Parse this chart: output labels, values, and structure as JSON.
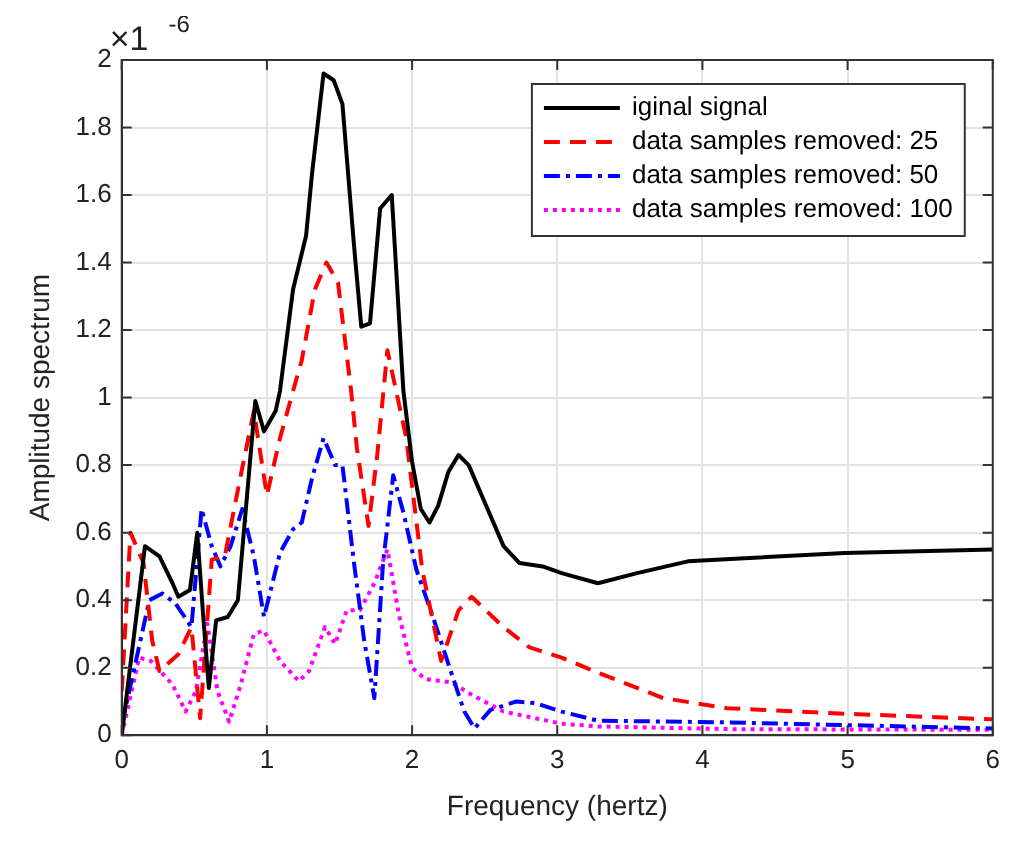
{
  "chart_data": {
    "type": "line",
    "xlabel": "Frequency (hertz)",
    "ylabel": "Amplitude spectrum",
    "annotations": [
      "×1$^{-6}$"
    ],
    "xlim": [
      0,
      6
    ],
    "xticks": [
      0,
      1,
      2,
      3,
      4,
      5,
      6
    ],
    "ylim": [
      0,
      2
    ],
    "yticks": [
      0,
      0.2,
      0.4,
      0.6,
      0.8,
      1,
      1.2,
      1.4,
      1.6,
      1.8,
      2
    ],
    "grid": true,
    "legend": "top right",
    "marker": "none",
    "series": [
      {
        "name": "iginal signal",
        "color": "#000000",
        "line_style": "solid",
        "x": [
          0,
          0.16,
          0.26,
          0.35,
          0.39,
          0.47,
          0.52,
          0.56,
          0.6,
          0.65,
          0.73,
          0.8,
          0.92,
          0.98,
          1.06,
          1.09,
          1.18,
          1.27,
          1.31,
          1.39,
          1.46,
          1.52,
          1.6,
          1.65,
          1.71,
          1.78,
          1.86,
          1.94,
          2.0,
          2.06,
          2.12,
          2.18,
          2.25,
          2.32,
          2.39,
          2.52,
          2.63,
          2.74,
          2.9,
          3.03,
          3.28,
          3.55,
          3.9,
          4.98,
          6
        ],
        "values": [
          0,
          0.56,
          0.53,
          0.45,
          0.41,
          0.43,
          0.6,
          0.36,
          0.14,
          0.34,
          0.35,
          0.4,
          0.99,
          0.9,
          0.96,
          1.02,
          1.32,
          1.48,
          1.66,
          1.96,
          1.94,
          1.87,
          1.45,
          1.21,
          1.22,
          1.56,
          1.6,
          1.02,
          0.81,
          0.67,
          0.63,
          0.68,
          0.78,
          0.83,
          0.8,
          0.67,
          0.56,
          0.51,
          0.5,
          0.48,
          0.45,
          0.48,
          0.515,
          0.54,
          0.55
        ]
      },
      {
        "name": "data samples removed: 25",
        "color": "#ff0000",
        "line_style": "dashed",
        "x": [
          0,
          0.06,
          0.15,
          0.21,
          0.26,
          0.39,
          0.48,
          0.54,
          0.62,
          0.71,
          0.82,
          0.91,
          1.0,
          1.09,
          1.2,
          1.24,
          1.33,
          1.41,
          1.49,
          1.58,
          1.62,
          1.7,
          1.76,
          1.83,
          1.89,
          1.96,
          2.07,
          2.2,
          2.32,
          2.41,
          2.63,
          2.81,
          3.03,
          3.28,
          3.73,
          4.17,
          5.07,
          6
        ],
        "values": [
          0.13,
          0.6,
          0.51,
          0.28,
          0.19,
          0.24,
          0.32,
          0.05,
          0.52,
          0.53,
          0.77,
          0.96,
          0.71,
          0.88,
          1.05,
          1.11,
          1.32,
          1.4,
          1.34,
          1.02,
          0.85,
          0.62,
          0.83,
          1.14,
          1.02,
          0.88,
          0.49,
          0.22,
          0.37,
          0.41,
          0.32,
          0.26,
          0.23,
          0.185,
          0.11,
          0.08,
          0.062,
          0.047
        ]
      },
      {
        "name": "data samples removed: 50",
        "color": "#0000ff",
        "line_style": "dashdot",
        "x": [
          0,
          0.19,
          0.28,
          0.37,
          0.48,
          0.55,
          0.62,
          0.68,
          0.75,
          0.83,
          0.91,
          0.98,
          1.09,
          1.18,
          1.24,
          1.31,
          1.39,
          1.47,
          1.52,
          1.6,
          1.67,
          1.74,
          1.8,
          1.87,
          1.94,
          2.03,
          2.14,
          2.27,
          2.36,
          2.43,
          2.54,
          2.72,
          2.85,
          3.03,
          3.28,
          4.17,
          6
        ],
        "values": [
          0.03,
          0.4,
          0.42,
          0.39,
          0.32,
          0.67,
          0.56,
          0.5,
          0.56,
          0.67,
          0.53,
          0.35,
          0.54,
          0.61,
          0.63,
          0.76,
          0.88,
          0.8,
          0.8,
          0.51,
          0.28,
          0.11,
          0.51,
          0.77,
          0.66,
          0.49,
          0.355,
          0.185,
          0.07,
          0.02,
          0.075,
          0.1,
          0.095,
          0.07,
          0.043,
          0.038,
          0.02
        ]
      },
      {
        "name": "data samples removed: 100",
        "color": "#ff00ff",
        "line_style": "dotted",
        "x": [
          0,
          0.12,
          0.2,
          0.35,
          0.44,
          0.51,
          0.59,
          0.66,
          0.74,
          0.82,
          0.91,
          0.98,
          1.09,
          1.22,
          1.29,
          1.4,
          1.47,
          1.55,
          1.64,
          1.74,
          1.83,
          1.91,
          2.0,
          2.09,
          2.27,
          2.41,
          2.63,
          3.03,
          3.28,
          4.17,
          6
        ],
        "values": [
          0,
          0.23,
          0.22,
          0.15,
          0.07,
          0.13,
          0.33,
          0.13,
          0.04,
          0.15,
          0.3,
          0.31,
          0.22,
          0.16,
          0.19,
          0.32,
          0.27,
          0.37,
          0.37,
          0.45,
          0.55,
          0.355,
          0.2,
          0.166,
          0.157,
          0.12,
          0.07,
          0.034,
          0.026,
          0.018,
          0.016
        ]
      }
    ]
  }
}
